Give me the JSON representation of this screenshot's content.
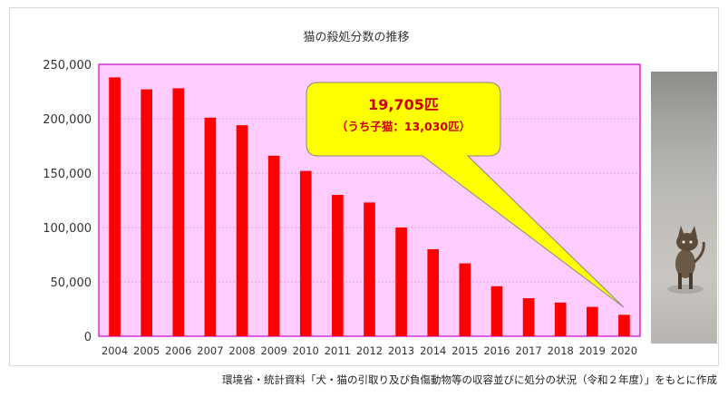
{
  "chart_data": {
    "type": "bar",
    "title": "猫の殺処分数の推移",
    "categories": [
      "2004",
      "2005",
      "2006",
      "2007",
      "2008",
      "2009",
      "2010",
      "2011",
      "2012",
      "2013",
      "2014",
      "2015",
      "2016",
      "2017",
      "2018",
      "2019",
      "2020"
    ],
    "values": [
      238000,
      227000,
      228000,
      201000,
      194000,
      166000,
      152000,
      130000,
      123000,
      100000,
      80000,
      67000,
      46000,
      35000,
      31000,
      27000,
      19705
    ],
    "ylim": [
      0,
      250000
    ],
    "yticks": [
      0,
      50000,
      100000,
      150000,
      200000,
      250000
    ],
    "ytick_labels": [
      "0",
      "50,000",
      "100,000",
      "150,000",
      "200,000",
      "250,000"
    ],
    "grid": true,
    "bar_color": "#ff0000",
    "plot_bg": "#ffccff",
    "plot_border": "#cc00cc",
    "annotation": {
      "line1": "19,705匹",
      "line2": "（うち子猫：13,030匹）",
      "bg": "#ffff00",
      "text_color": "#cc0000"
    }
  },
  "source_note": "環境省・統計資料「犬・猫の引取り及び負傷動物等の収容並びに処分の状況（令和２年度）」をもとに作成",
  "photo": {
    "icon": "kitten-photo"
  }
}
